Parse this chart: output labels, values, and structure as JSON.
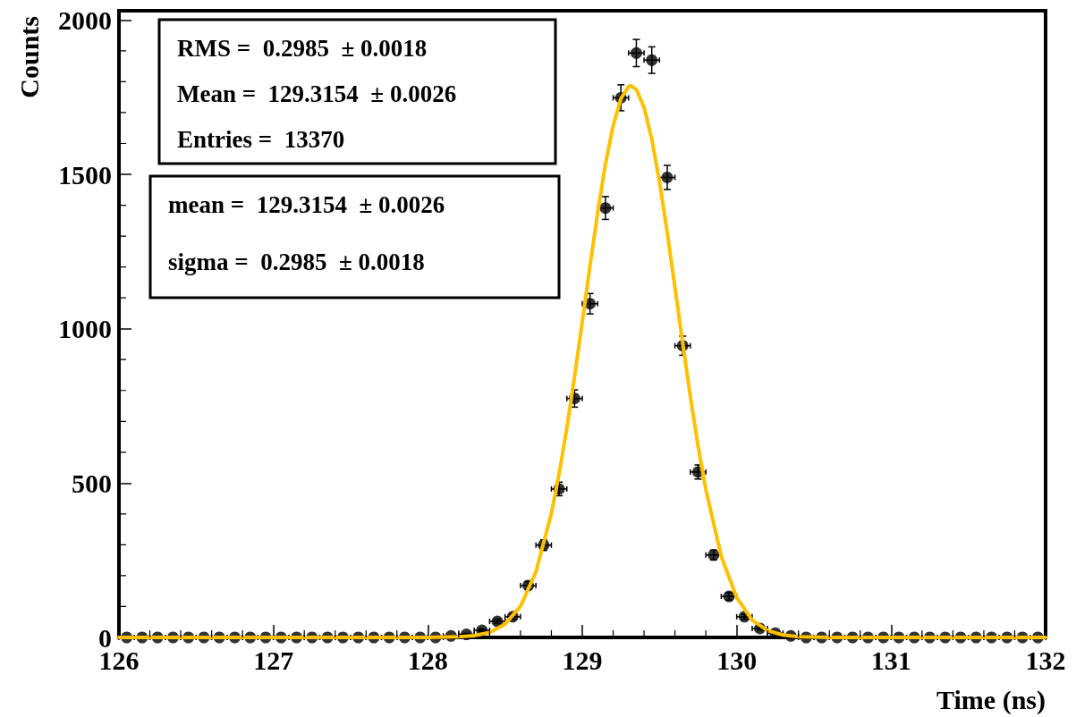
{
  "chart_data": {
    "type": "scatter",
    "xlabel": "Time (ns)",
    "ylabel": "Counts",
    "annotations": [
      "RMS =  0.2985  ± 0.0018",
      "Mean =  129.3154  ± 0.0026",
      "Entries =  13370",
      "mean =  129.3154  ± 0.0026",
      "sigma =  0.2985  ± 0.0018"
    ],
    "xlim": [
      126,
      132
    ],
    "xticks": [
      126,
      127,
      128,
      129,
      130,
      131,
      132
    ],
    "ylim": [
      0,
      2030
    ],
    "yticks": [
      0,
      500,
      1000,
      1500,
      2000
    ],
    "grid": false,
    "legend": false,
    "series": [
      {
        "color": "#000000",
        "marker": "circle",
        "x": [
          126.05,
          126.15,
          126.25,
          126.35,
          126.45,
          126.55,
          126.65,
          126.75,
          126.85,
          126.95,
          127.05,
          127.15,
          127.25,
          127.35,
          127.45,
          127.55,
          127.65,
          127.75,
          127.85,
          127.95,
          128.05,
          128.15,
          128.25,
          128.35,
          128.45,
          128.55,
          128.65,
          128.75,
          128.85,
          128.95,
          129.05,
          129.15,
          129.25,
          129.35,
          129.45,
          129.55,
          129.65,
          129.75,
          129.85,
          129.95,
          130.05,
          130.15,
          130.25,
          130.35,
          130.45,
          130.55,
          130.65,
          130.75,
          130.85,
          130.95,
          131.05,
          131.15,
          131.25,
          131.35,
          131.45,
          131.55,
          131.65,
          131.75,
          131.85,
          131.95
        ],
        "values": [
          0,
          0,
          0,
          0,
          0,
          0,
          0,
          0,
          0,
          0,
          0,
          0,
          0,
          0,
          0,
          0,
          0,
          0,
          0,
          0,
          0,
          5,
          10,
          23,
          52,
          67,
          168,
          299,
          481,
          774,
          1081,
          1391,
          1748,
          1893,
          1870,
          1490,
          945,
          536,
          267,
          133,
          67,
          29,
          14,
          5,
          0,
          0,
          0,
          0,
          0,
          0,
          0,
          0,
          0,
          0,
          0,
          0,
          0,
          0,
          0,
          0
        ],
        "errors": [
          null,
          null,
          null,
          null,
          null,
          null,
          null,
          null,
          null,
          null,
          null,
          null,
          null,
          null,
          null,
          null,
          null,
          null,
          null,
          null,
          null,
          null,
          3,
          5,
          7,
          8,
          13,
          17,
          22,
          28,
          33,
          37,
          42,
          44,
          43,
          39,
          31,
          23,
          16,
          12,
          8,
          5,
          4,
          null,
          null,
          null,
          null,
          null,
          null,
          null,
          null,
          null,
          null,
          null,
          null,
          null,
          null,
          null,
          null,
          null
        ],
        "xerrors": [
          0.05,
          0.05,
          0.05,
          0.05,
          0.05,
          0.05,
          0.05,
          0.05,
          0.05,
          0.05,
          0.05,
          0.05,
          0.05,
          0.05,
          0.05,
          0.05,
          0.05,
          0.05,
          0.05,
          0.05,
          0.05,
          0.05,
          0.05,
          0.05,
          0.05,
          0.05,
          0.05,
          0.05,
          0.05,
          0.05,
          0.05,
          0.05,
          0.05,
          0.05,
          0.05,
          0.05,
          0.05,
          0.05,
          0.05,
          0.05,
          0.05,
          0.05,
          0.05,
          0.05,
          0.05,
          0.05,
          0.05,
          0.05,
          0.05,
          0.05,
          0.05,
          0.05,
          0.05,
          0.05,
          0.05,
          0.05,
          0.05,
          0.05,
          0.05,
          0.05
        ]
      },
      {
        "type": "line",
        "color": "#ffc000",
        "marker": "none",
        "line_style": "solid",
        "x": [
          126,
          128,
          128.2,
          128.3,
          128.4,
          128.5,
          128.6,
          128.7,
          128.8,
          128.85,
          128.9,
          128.95,
          129,
          129.05,
          129.1,
          129.15,
          129.2,
          129.25,
          129.3,
          129.3154,
          129.35,
          129.4,
          129.45,
          129.5,
          129.55,
          129.6,
          129.65,
          129.7,
          129.75,
          129.8,
          129.9,
          130,
          130.1,
          130.2,
          130.3,
          130.4,
          130.6,
          132
        ],
        "values": [
          0,
          0,
          2,
          6,
          16,
          43,
          101,
          213,
          402,
          530,
          678,
          845,
          1023,
          1204,
          1377,
          1533,
          1658,
          1745,
          1785,
          1787,
          1775,
          1717,
          1614,
          1476,
          1312,
          1134,
          954,
          779,
          619,
          479,
          262,
          129,
          56,
          22,
          8,
          2,
          0,
          0
        ]
      }
    ]
  }
}
